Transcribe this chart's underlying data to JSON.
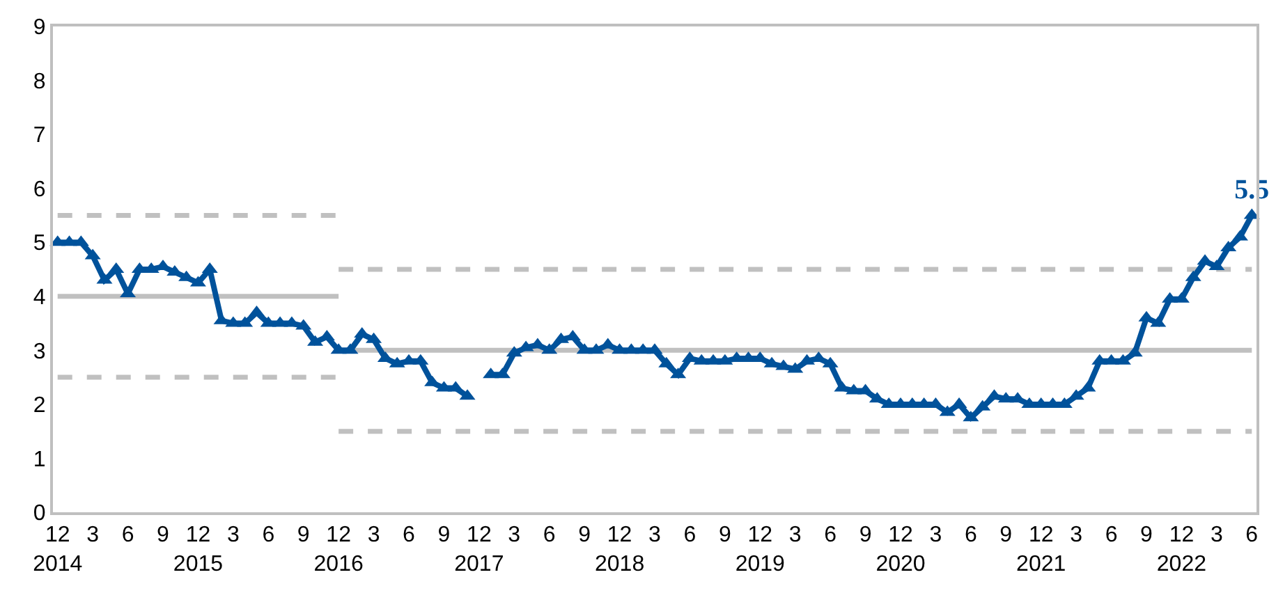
{
  "chart_data": {
    "type": "line",
    "categories": [
      "12\n2014",
      null,
      null,
      "3",
      null,
      null,
      "6",
      null,
      null,
      "9",
      null,
      null,
      "12\n2015",
      null,
      null,
      "3",
      null,
      null,
      "6",
      null,
      null,
      "9",
      null,
      null,
      "12\n2016",
      null,
      null,
      "3",
      null,
      null,
      "6",
      null,
      null,
      "9",
      null,
      null,
      "12\n2017",
      null,
      null,
      "3",
      null,
      null,
      "6",
      null,
      null,
      "9",
      null,
      null,
      "12\n2018",
      null,
      null,
      "3",
      null,
      null,
      "6",
      null,
      null,
      "9",
      null,
      null,
      "12\n2019",
      null,
      null,
      "3",
      null,
      null,
      "6",
      null,
      null,
      "9",
      null,
      null,
      "12\n2020",
      null,
      null,
      "3",
      null,
      null,
      "6",
      null,
      null,
      "9",
      null,
      null,
      "12\n2021",
      null,
      null,
      "3",
      null,
      null,
      "6",
      null,
      null,
      "9",
      null,
      null,
      "12\n2022",
      null,
      null,
      "3",
      null,
      null,
      "6"
    ],
    "ylim": [
      0,
      9
    ],
    "yticks": [
      0,
      1,
      2,
      3,
      4,
      5,
      6,
      7,
      8,
      9
    ],
    "series": [
      {
        "color": "#c0c0c0",
        "line_style": "solid",
        "marker": "none",
        "values": [
          4,
          4,
          4,
          4,
          4,
          4,
          4,
          4,
          4,
          4,
          4,
          4,
          4,
          4,
          4,
          4,
          4,
          4,
          4,
          4,
          4,
          4,
          4,
          4,
          4,
          null,
          null,
          null,
          null,
          null,
          null,
          null,
          null,
          null,
          null,
          null,
          null,
          null,
          null,
          null,
          null,
          null,
          null,
          null,
          null,
          null,
          null,
          null,
          null,
          null,
          null,
          null,
          null,
          null,
          null,
          null,
          null,
          null,
          null,
          null,
          null,
          null,
          null,
          null,
          null,
          null,
          null,
          null,
          null,
          null,
          null,
          null,
          null,
          null,
          null,
          null,
          null,
          null,
          null,
          null,
          null,
          null,
          null,
          null,
          null,
          null,
          null,
          null,
          null,
          null,
          null,
          null,
          null,
          null,
          null,
          null,
          null,
          null,
          null,
          null,
          null,
          null,
          null
        ]
      },
      {
        "color": "#c0c0c0",
        "line_style": "dashed",
        "marker": "none",
        "values": [
          5.5,
          5.5,
          5.5,
          5.5,
          5.5,
          5.5,
          5.5,
          5.5,
          5.5,
          5.5,
          5.5,
          5.5,
          5.5,
          5.5,
          5.5,
          5.5,
          5.5,
          5.5,
          5.5,
          5.5,
          5.5,
          5.5,
          5.5,
          5.5,
          5.5,
          null,
          null,
          null,
          null,
          null,
          null,
          null,
          null,
          null,
          null,
          null,
          null,
          null,
          null,
          null,
          null,
          null,
          null,
          null,
          null,
          null,
          null,
          null,
          null,
          null,
          null,
          null,
          null,
          null,
          null,
          null,
          null,
          null,
          null,
          null,
          null,
          null,
          null,
          null,
          null,
          null,
          null,
          null,
          null,
          null,
          null,
          null,
          null,
          null,
          null,
          null,
          null,
          null,
          null,
          null,
          null,
          null,
          null,
          null,
          null,
          null,
          null,
          null,
          null,
          null,
          null,
          null,
          null,
          null,
          null,
          null,
          null,
          null,
          null,
          null,
          null,
          null,
          null
        ]
      },
      {
        "color": "#c0c0c0",
        "line_style": "dashed",
        "marker": "none",
        "values": [
          2.5,
          2.5,
          2.5,
          2.5,
          2.5,
          2.5,
          2.5,
          2.5,
          2.5,
          2.5,
          2.5,
          2.5,
          2.5,
          2.5,
          2.5,
          2.5,
          2.5,
          2.5,
          2.5,
          2.5,
          2.5,
          2.5,
          2.5,
          2.5,
          2.5,
          null,
          null,
          null,
          null,
          null,
          null,
          null,
          null,
          null,
          null,
          null,
          null,
          null,
          null,
          null,
          null,
          null,
          null,
          null,
          null,
          null,
          null,
          null,
          null,
          null,
          null,
          null,
          null,
          null,
          null,
          null,
          null,
          null,
          null,
          null,
          null,
          null,
          null,
          null,
          null,
          null,
          null,
          null,
          null,
          null,
          null,
          null,
          null,
          null,
          null,
          null,
          null,
          null,
          null,
          null,
          null,
          null,
          null,
          null,
          null,
          null,
          null,
          null,
          null,
          null,
          null,
          null,
          null,
          null,
          null,
          null,
          null,
          null,
          null,
          null,
          null,
          null,
          null
        ]
      },
      {
        "color": "#c0c0c0",
        "line_style": "solid",
        "marker": "none",
        "values": [
          null,
          null,
          null,
          null,
          null,
          null,
          null,
          null,
          null,
          null,
          null,
          null,
          null,
          null,
          null,
          null,
          null,
          null,
          null,
          null,
          null,
          null,
          null,
          null,
          3,
          3,
          3,
          3,
          3,
          3,
          3,
          3,
          3,
          3,
          3,
          3,
          3,
          3,
          3,
          3,
          3,
          3,
          3,
          3,
          3,
          3,
          3,
          3,
          3,
          3,
          3,
          3,
          3,
          3,
          3,
          3,
          3,
          3,
          3,
          3,
          3,
          3,
          3,
          3,
          3,
          3,
          3,
          3,
          3,
          3,
          3,
          3,
          3,
          3,
          3,
          3,
          3,
          3,
          3,
          3,
          3,
          3,
          3,
          3,
          3,
          3,
          3,
          3,
          3,
          3,
          3,
          3,
          3,
          3,
          3,
          3,
          3,
          3,
          3,
          3,
          3,
          3,
          3
        ]
      },
      {
        "color": "#c0c0c0",
        "line_style": "dashed",
        "marker": "none",
        "values": [
          null,
          null,
          null,
          null,
          null,
          null,
          null,
          null,
          null,
          null,
          null,
          null,
          null,
          null,
          null,
          null,
          null,
          null,
          null,
          null,
          null,
          null,
          null,
          null,
          4.5,
          4.5,
          4.5,
          4.5,
          4.5,
          4.5,
          4.5,
          4.5,
          4.5,
          4.5,
          4.5,
          4.5,
          4.5,
          4.5,
          4.5,
          4.5,
          4.5,
          4.5,
          4.5,
          4.5,
          4.5,
          4.5,
          4.5,
          4.5,
          4.5,
          4.5,
          4.5,
          4.5,
          4.5,
          4.5,
          4.5,
          4.5,
          4.5,
          4.5,
          4.5,
          4.5,
          4.5,
          4.5,
          4.5,
          4.5,
          4.5,
          4.5,
          4.5,
          4.5,
          4.5,
          4.5,
          4.5,
          4.5,
          4.5,
          4.5,
          4.5,
          4.5,
          4.5,
          4.5,
          4.5,
          4.5,
          4.5,
          4.5,
          4.5,
          4.5,
          4.5,
          4.5,
          4.5,
          4.5,
          4.5,
          4.5,
          4.5,
          4.5,
          4.5,
          4.5,
          4.5,
          4.5,
          4.5,
          4.5,
          4.5,
          4.5,
          4.5,
          4.5,
          4.5
        ]
      },
      {
        "color": "#c0c0c0",
        "line_style": "dashed",
        "marker": "none",
        "values": [
          null,
          null,
          null,
          null,
          null,
          null,
          null,
          null,
          null,
          null,
          null,
          null,
          null,
          null,
          null,
          null,
          null,
          null,
          null,
          null,
          null,
          null,
          null,
          null,
          1.5,
          1.5,
          1.5,
          1.5,
          1.5,
          1.5,
          1.5,
          1.5,
          1.5,
          1.5,
          1.5,
          1.5,
          1.5,
          1.5,
          1.5,
          1.5,
          1.5,
          1.5,
          1.5,
          1.5,
          1.5,
          1.5,
          1.5,
          1.5,
          1.5,
          1.5,
          1.5,
          1.5,
          1.5,
          1.5,
          1.5,
          1.5,
          1.5,
          1.5,
          1.5,
          1.5,
          1.5,
          1.5,
          1.5,
          1.5,
          1.5,
          1.5,
          1.5,
          1.5,
          1.5,
          1.5,
          1.5,
          1.5,
          1.5,
          1.5,
          1.5,
          1.5,
          1.5,
          1.5,
          1.5,
          1.5,
          1.5,
          1.5,
          1.5,
          1.5,
          1.5,
          1.5,
          1.5,
          1.5,
          1.5,
          1.5,
          1.5,
          1.5,
          1.5,
          1.5,
          1.5,
          1.5,
          1.5,
          1.5,
          1.5,
          1.5,
          1.5,
          1.5,
          1.5
        ]
      },
      {
        "color": "#00529b",
        "line_style": "solid",
        "marker": "triangle",
        "values": [
          5.0,
          5.0,
          5.0,
          4.75,
          4.3,
          4.5,
          4.05,
          4.5,
          4.5,
          4.55,
          4.45,
          4.35,
          4.25,
          4.5,
          3.55,
          3.5,
          3.5,
          3.7,
          3.5,
          3.5,
          3.5,
          3.45,
          3.15,
          3.25,
          3.0,
          3.0,
          3.3,
          3.2,
          2.85,
          2.75,
          2.8,
          2.8,
          2.4,
          2.3,
          2.3,
          2.15,
          null,
          2.55,
          2.55,
          2.95,
          3.05,
          3.1,
          3.0,
          3.2,
          3.25,
          3.0,
          3.0,
          3.1,
          3.0,
          3.0,
          3.0,
          3.0,
          2.75,
          2.55,
          2.85,
          2.8,
          2.8,
          2.8,
          2.85,
          2.85,
          2.85,
          2.75,
          2.7,
          2.65,
          2.8,
          2.85,
          2.75,
          2.3,
          2.25,
          2.25,
          2.1,
          2.0,
          2.0,
          2.0,
          2.0,
          2.0,
          1.85,
          2.0,
          1.75,
          1.95,
          2.15,
          2.1,
          2.1,
          2.0,
          2.0,
          2.0,
          2.0,
          2.15,
          2.3,
          2.8,
          2.8,
          2.8,
          2.95,
          3.6,
          3.5,
          3.95,
          3.95,
          4.35,
          4.65,
          4.55,
          4.9,
          5.1,
          5.5
        ],
        "value_labels": [
          null,
          null,
          null,
          null,
          null,
          null,
          null,
          null,
          null,
          null,
          null,
          null,
          null,
          null,
          null,
          null,
          null,
          null,
          null,
          null,
          null,
          null,
          null,
          null,
          null,
          null,
          null,
          null,
          null,
          null,
          null,
          null,
          null,
          null,
          null,
          null,
          null,
          null,
          null,
          null,
          null,
          null,
          null,
          null,
          null,
          null,
          null,
          null,
          null,
          null,
          null,
          null,
          null,
          null,
          null,
          null,
          null,
          null,
          null,
          null,
          null,
          null,
          null,
          null,
          null,
          null,
          null,
          null,
          null,
          null,
          null,
          null,
          null,
          null,
          null,
          null,
          null,
          null,
          null,
          null,
          null,
          null,
          null,
          null,
          null,
          null,
          null,
          null,
          null,
          null,
          null,
          null,
          null,
          null,
          null,
          null,
          null,
          null,
          null,
          null,
          null,
          null,
          "5.5"
        ]
      }
    ]
  }
}
